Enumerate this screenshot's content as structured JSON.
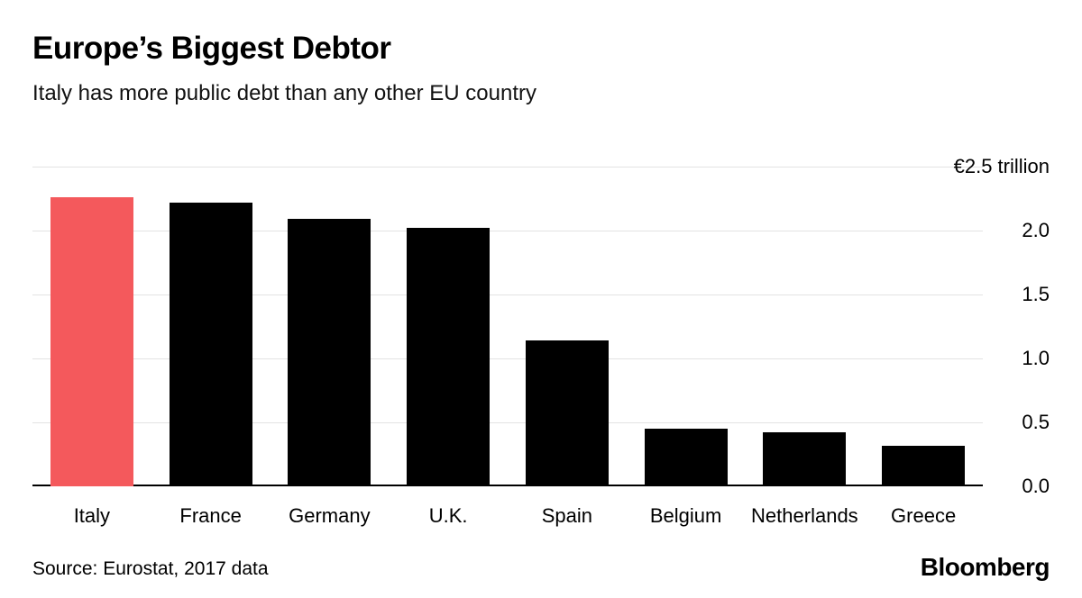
{
  "header": {
    "title": "Europe’s Biggest Debtor",
    "subtitle": "Italy has more public debt than any other EU country"
  },
  "chart_data": {
    "type": "bar",
    "title": "Europe’s Biggest Debtor",
    "subtitle": "Italy has more public debt than any other EU country",
    "categories": [
      "Italy",
      "France",
      "Germany",
      "U.K.",
      "Spain",
      "Belgium",
      "Netherlands",
      "Greece"
    ],
    "values": [
      2.26,
      2.22,
      2.09,
      2.02,
      1.14,
      0.45,
      0.42,
      0.32
    ],
    "unit": "trillion EUR",
    "ylim": [
      0,
      2.5
    ],
    "yticks": [
      0,
      0.5,
      1.0,
      1.5,
      2.0,
      2.5
    ],
    "ytick_labels": [
      "0.0",
      "0.5",
      "1.0",
      "1.5",
      "2.0",
      "€2.5 trillion"
    ],
    "grid": "horizontal",
    "legend": "none",
    "axis_label_position": "right",
    "highlight_index": 0,
    "highlight_color": "#f4595c",
    "bar_color": "#000000",
    "gridline_color": "#e3e3e3"
  },
  "footer": {
    "source": "Source: Eurostat, 2017 data",
    "brand": "Bloomberg"
  }
}
